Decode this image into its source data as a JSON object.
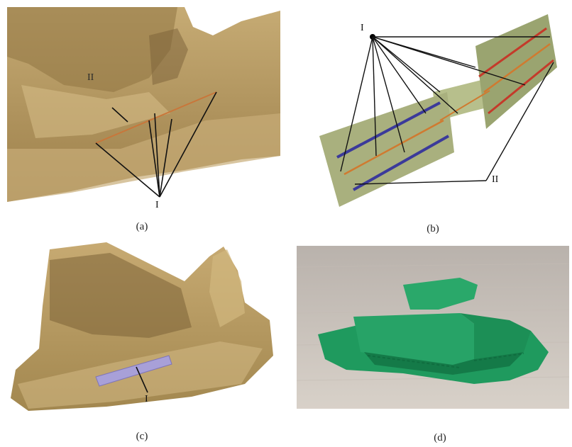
{
  "figure": {
    "panels": [
      {
        "caption": "(a)",
        "labels": [
          "II",
          "I"
        ],
        "description_colors": {
          "bone": "#b89a62",
          "line": "#c9763a"
        }
      },
      {
        "caption": "(b)",
        "labels": [
          "I",
          "II"
        ],
        "description_colors": {
          "strip": "#a9b07e",
          "blue_line": "#3b3a9a",
          "orange_line": "#d07a30",
          "red_line": "#c43a2a"
        }
      },
      {
        "caption": "(c)",
        "labels": [
          "I"
        ],
        "description_colors": {
          "bone": "#b39660",
          "guide": "#a8a0d8"
        }
      },
      {
        "caption": "(d)",
        "labels": [],
        "description_colors": {
          "model": "#1f9a5e",
          "surface": "#c9c2bb"
        }
      }
    ]
  }
}
